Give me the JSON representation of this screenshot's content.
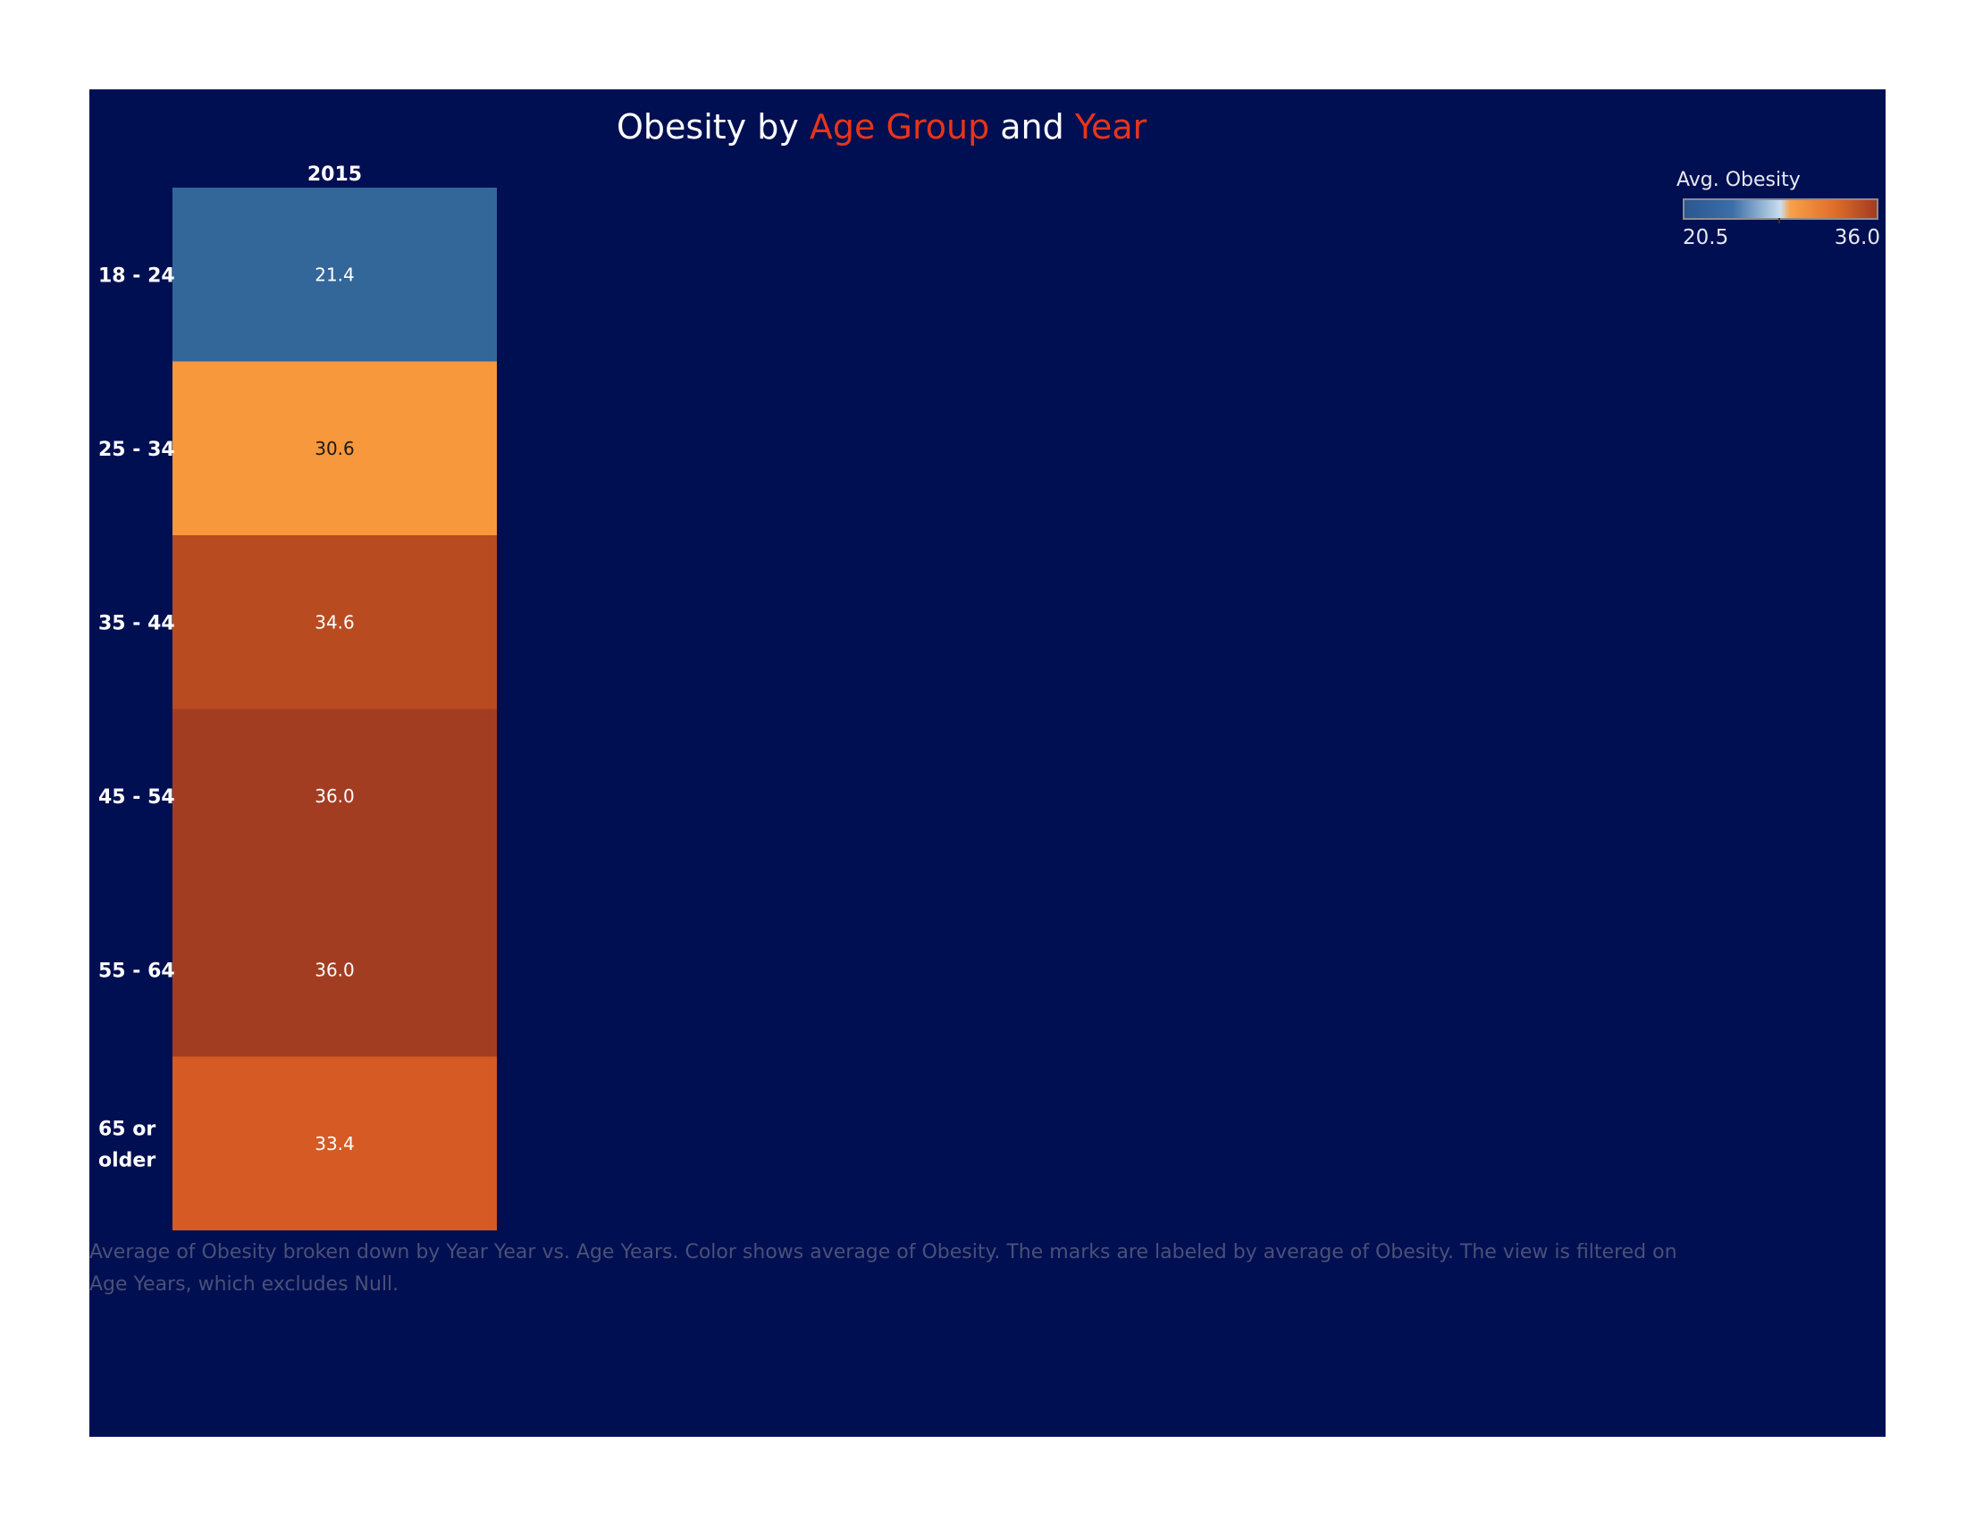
{
  "title": {
    "parts": [
      "Obesity by ",
      "Age Group",
      " and ",
      "Year"
    ]
  },
  "colors": {
    "panel_background": "#000f52",
    "title_accent": "#e8341a",
    "text_light": "#ffffff",
    "text_dark": "#1a1a1a"
  },
  "chart_data": {
    "type": "heatmap",
    "columns": [
      "2015"
    ],
    "rows": [
      "18 - 24",
      "25 - 34",
      "35 - 44",
      "45 - 54",
      "55 - 64",
      "65 or older"
    ],
    "values": [
      [
        21.4
      ],
      [
        30.6
      ],
      [
        34.6
      ],
      [
        36.0
      ],
      [
        36.0
      ],
      [
        33.4
      ]
    ],
    "value_labels": [
      "21.4",
      "30.6",
      "34.6",
      "36.0",
      "36.0",
      "33.4"
    ],
    "cell_colors": [
      "#336699",
      "#f7983c",
      "#b94b21",
      "#a33d22",
      "#a33d22",
      "#d55a24"
    ],
    "legend": {
      "title": "Avg. Obesity",
      "min_label": "20.5",
      "max_label": "36.0",
      "min": 20.5,
      "max": 36.0,
      "placement": "top-right"
    }
  },
  "caption": "Average of Obesity broken down by Year Year vs. Age Years.  Color shows average of Obesity.  The marks are labeled by average of Obesity. The view is filtered on Age Years, which excludes Null."
}
